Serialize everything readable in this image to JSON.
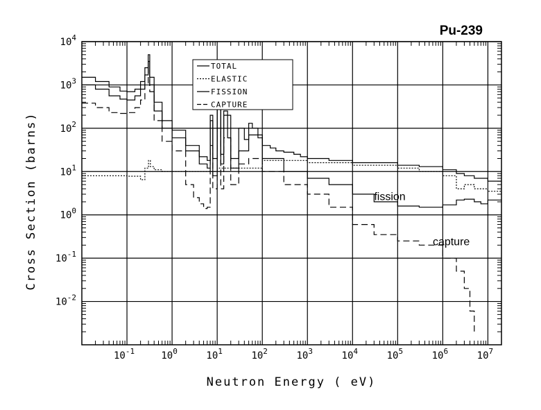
{
  "chart_data": {
    "type": "line",
    "title": "Pu-239",
    "xlabel": "Neutron Energy ( eV)",
    "ylabel": "Cross Section (barns)",
    "xscale": "log",
    "yscale": "log",
    "xlim": [
      0.01,
      20000000
    ],
    "ylim": [
      0.001,
      10000
    ],
    "grid": true,
    "legend_position": "top-center",
    "x_ticks": [
      {
        "base": "10",
        "exp": "-1",
        "value": 0.1
      },
      {
        "base": "10",
        "exp": "0",
        "value": 1
      },
      {
        "base": "10",
        "exp": "1",
        "value": 10
      },
      {
        "base": "10",
        "exp": "2",
        "value": 100
      },
      {
        "base": "10",
        "exp": "3",
        "value": 1000
      },
      {
        "base": "10",
        "exp": "4",
        "value": 10000
      },
      {
        "base": "10",
        "exp": "5",
        "value": 100000
      },
      {
        "base": "10",
        "exp": "6",
        "value": 1000000
      },
      {
        "base": "10",
        "exp": "7",
        "value": 10000000
      }
    ],
    "y_ticks": [
      {
        "base": "10",
        "exp": "-2",
        "value": 0.01
      },
      {
        "base": "10",
        "exp": "-1",
        "value": 0.1
      },
      {
        "base": "10",
        "exp": "0",
        "value": 1
      },
      {
        "base": "10",
        "exp": "1",
        "value": 10
      },
      {
        "base": "10",
        "exp": "2",
        "value": 100
      },
      {
        "base": "10",
        "exp": "3",
        "value": 1000
      },
      {
        "base": "10",
        "exp": "4",
        "value": 10000
      }
    ],
    "series": [
      {
        "name": "TOTAL",
        "style": "solid",
        "x": [
          0.01,
          0.02,
          0.04,
          0.07,
          0.1,
          0.15,
          0.2,
          0.25,
          0.296,
          0.32,
          0.4,
          0.6,
          1,
          2,
          4,
          6,
          7,
          8,
          10,
          12,
          14,
          17,
          20,
          30,
          40,
          50,
          60,
          80,
          100,
          150,
          200,
          300,
          500,
          700,
          1000,
          3000,
          10000,
          100000,
          300000,
          1000000,
          2000000,
          3000000,
          5000000,
          10000000,
          20000000
        ],
        "y": [
          1500,
          1200,
          900,
          720,
          700,
          800,
          1200,
          2500,
          5000,
          1500,
          400,
          150,
          90,
          40,
          22,
          18,
          200,
          20,
          400,
          25,
          250,
          60,
          20,
          100,
          55,
          130,
          100,
          60,
          40,
          35,
          30,
          28,
          25,
          22,
          20,
          18,
          16,
          14,
          13,
          11,
          9,
          8,
          7,
          6,
          6
        ]
      },
      {
        "name": "ELASTIC",
        "style": "dotted",
        "x": [
          0.01,
          0.1,
          0.2,
          0.25,
          0.3,
          0.33,
          0.4,
          0.6,
          1,
          10,
          100,
          1000,
          10000,
          100000,
          300000,
          1000000,
          2000000,
          3000000,
          5000000,
          10000000,
          20000000
        ],
        "y": [
          8,
          7.8,
          6.5,
          12,
          18,
          13,
          11,
          10,
          10,
          12,
          18,
          16,
          14,
          12,
          10,
          8,
          4,
          5,
          4,
          3.5,
          3
        ]
      },
      {
        "name": "FISSION",
        "style": "solid",
        "x": [
          0.01,
          0.02,
          0.04,
          0.07,
          0.1,
          0.15,
          0.2,
          0.25,
          0.296,
          0.32,
          0.4,
          0.6,
          1,
          2,
          4,
          6,
          7,
          8,
          10,
          12,
          14,
          20,
          30,
          50,
          100,
          300,
          1000,
          3000,
          10000,
          30000,
          100000,
          300000,
          1000000,
          2000000,
          3000000,
          5000000,
          7000000,
          10000000,
          20000000
        ],
        "y": [
          1000,
          800,
          560,
          470,
          450,
          560,
          800,
          1700,
          3500,
          1000,
          250,
          100,
          60,
          30,
          15,
          12,
          150,
          8,
          300,
          15,
          200,
          12,
          30,
          70,
          20,
          10,
          7,
          5,
          3,
          2,
          1.6,
          1.5,
          1.7,
          2.2,
          2.3,
          2,
          1.8,
          2.2,
          2.3
        ]
      },
      {
        "name": "CAPTURE",
        "style": "dashed",
        "x": [
          0.01,
          0.02,
          0.04,
          0.07,
          0.1,
          0.15,
          0.2,
          0.25,
          0.296,
          0.32,
          0.4,
          0.6,
          1,
          2,
          3,
          4,
          5,
          6,
          7,
          8,
          10,
          12,
          14,
          20,
          30,
          50,
          100,
          300,
          1000,
          3000,
          10000,
          30000,
          100000,
          300000,
          1000000,
          2000000,
          3000000,
          4000000,
          5000000
        ],
        "y": [
          380,
          300,
          230,
          220,
          230,
          300,
          450,
          1100,
          2500,
          700,
          150,
          50,
          30,
          5,
          2.5,
          1.8,
          1.4,
          1.5,
          40,
          4,
          100,
          4,
          60,
          5,
          15,
          20,
          10,
          5,
          3,
          1.5,
          0.6,
          0.35,
          0.25,
          0.2,
          0.1,
          0.05,
          0.02,
          0.006,
          0.002
        ]
      }
    ],
    "annotations": [
      {
        "text": "fission",
        "x": 30000,
        "y": 2.2
      },
      {
        "text": "capture",
        "x": 600000,
        "y": 0.2
      }
    ]
  }
}
